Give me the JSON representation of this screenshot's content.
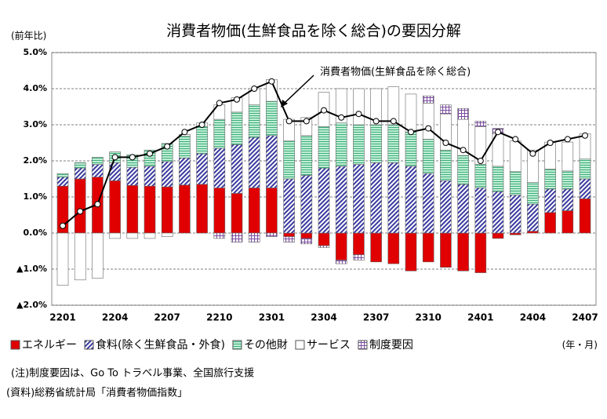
{
  "chart_data": {
    "type": "bar",
    "title": "消費者物価(生鮮食品を除く総合)の要因分解",
    "y_label": "(前年比)",
    "x_label": "(年・月)",
    "categories": [
      "2201",
      null,
      null,
      "2204",
      null,
      null,
      "2207",
      null,
      null,
      "2210",
      null,
      null,
      "2301",
      null,
      null,
      "2304",
      null,
      null,
      "2307",
      null,
      null,
      "2310",
      null,
      null,
      "2401",
      null,
      null,
      "2404",
      null,
      null,
      "2407"
    ],
    "ylim": [
      -2,
      5
    ],
    "yticks": [
      {
        "value": -2,
        "label": "▲2.0%"
      },
      {
        "value": -1,
        "label": "▲1.0%"
      },
      {
        "value": 0,
        "label": "0.0%"
      },
      {
        "value": 1,
        "label": "1.0%"
      },
      {
        "value": 2,
        "label": "2.0%"
      },
      {
        "value": 3,
        "label": "3.0%"
      },
      {
        "value": 4,
        "label": "4.0%"
      },
      {
        "value": 5,
        "label": "5.0%"
      }
    ],
    "grid": true,
    "series": [
      {
        "name": "エネルギー",
        "color": "#e00000",
        "values": [
          1.3,
          1.5,
          1.55,
          1.45,
          1.32,
          1.3,
          1.28,
          1.33,
          1.35,
          1.25,
          1.1,
          1.25,
          1.25,
          -0.1,
          -0.15,
          -0.35,
          -0.75,
          -0.6,
          -0.8,
          -0.85,
          -1.05,
          -0.8,
          -0.95,
          -1.05,
          -1.1,
          -0.15,
          -0.05,
          0.05,
          0.57,
          0.62,
          0.95
        ]
      },
      {
        "name": "食料(除く生鮮食品・外食)",
        "color": "#3a3aa0",
        "values": [
          0.25,
          0.3,
          0.35,
          0.5,
          0.5,
          0.55,
          0.7,
          0.75,
          0.85,
          1.1,
          1.35,
          1.4,
          1.45,
          1.5,
          1.6,
          1.8,
          1.85,
          1.9,
          1.95,
          1.95,
          1.85,
          1.65,
          1.45,
          1.35,
          1.25,
          1.15,
          1.05,
          0.75,
          0.65,
          0.6,
          0.55
        ]
      },
      {
        "name": "その他財",
        "color": "#3fae7a",
        "values": [
          0.1,
          0.15,
          0.2,
          0.3,
          0.35,
          0.45,
          0.5,
          0.6,
          0.75,
          0.8,
          0.9,
          0.9,
          0.95,
          1.05,
          1.1,
          1.15,
          1.2,
          1.1,
          1.05,
          1.05,
          0.95,
          0.95,
          0.85,
          0.8,
          0.65,
          0.7,
          0.65,
          0.6,
          0.55,
          0.5,
          0.55
        ]
      },
      {
        "name": "サービス",
        "color": "#ffffff",
        "values": [
          -1.45,
          -1.3,
          -1.25,
          -0.15,
          -0.15,
          -0.15,
          -0.1,
          0.05,
          0.1,
          0.4,
          0.4,
          0.45,
          0.6,
          0.6,
          0.5,
          0.95,
          0.95,
          1.0,
          1.0,
          1.05,
          1.05,
          1.0,
          1.0,
          1.0,
          1.05,
          0.9,
          0.85,
          0.9,
          0.75,
          0.8,
          0.7
        ]
      },
      {
        "name": "制度要因",
        "color": "#7a4aa0",
        "values": [
          0,
          0,
          0,
          0,
          0,
          0,
          0,
          0,
          0,
          -0.15,
          -0.25,
          -0.25,
          -0.1,
          -0.15,
          -0.15,
          -0.05,
          -0.1,
          -0.15,
          0,
          0,
          0,
          0.2,
          0.25,
          0.3,
          0.15,
          0.15,
          0,
          0,
          0,
          0,
          0
        ]
      }
    ],
    "line": {
      "name": "消費者物価(生鮮食品を除く総合)",
      "color": "#000000",
      "values": [
        0.2,
        0.6,
        0.8,
        2.1,
        2.1,
        2.2,
        2.4,
        2.8,
        3.0,
        3.6,
        3.7,
        4.0,
        4.2,
        3.1,
        3.1,
        3.4,
        3.2,
        3.3,
        3.1,
        3.1,
        2.8,
        2.9,
        2.5,
        2.3,
        2.0,
        2.8,
        2.6,
        2.2,
        2.5,
        2.6,
        2.7
      ]
    },
    "notes": [
      "(注)制度要因は、Go To トラベル事業、全国旅行支援",
      "(資料)総務省統計局「消費者物価指数」"
    ]
  }
}
